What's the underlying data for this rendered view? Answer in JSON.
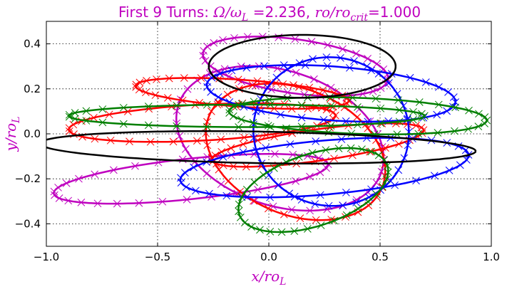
{
  "chart_data": {
    "type": "line",
    "title_parts": {
      "prefix": "First 9 Turns: ",
      "omega_ratio": "Ω/ω",
      "omega_sub": "L",
      "omega_value": " =2.236, ",
      "ro_ratio": "ro/ro",
      "ro_sub": "crit",
      "ro_value": "=1.000"
    },
    "xlabel_parts": {
      "main": "x/ro",
      "sub": "L"
    },
    "ylabel_parts": {
      "main": "y/ro",
      "sub": "L"
    },
    "xlim": [
      -1.0,
      1.0
    ],
    "ylim": [
      -0.5,
      0.5
    ],
    "xticks": [
      -1.0,
      -0.5,
      0.0,
      0.5,
      1.0
    ],
    "xtick_labels": [
      "−1.0",
      "−0.5",
      "0.0",
      "0.5",
      "1.0"
    ],
    "yticks": [
      -0.4,
      -0.2,
      0.0,
      0.2,
      0.4
    ],
    "ytick_labels": [
      "−0.4",
      "−0.2",
      "0.0",
      "0.2",
      "0.4"
    ],
    "grid": true,
    "legend": "none",
    "series": [
      {
        "color": "#bf00bf",
        "marker": "x",
        "ellipses": [
          {
            "cx": 0.12,
            "cy": 0.3,
            "rx": 0.42,
            "ry": 0.12,
            "tilt": -8
          },
          {
            "cx": -0.35,
            "cy": -0.2,
            "rx": 0.62,
            "ry": 0.09,
            "tilt": 6
          },
          {
            "cx": 0.05,
            "cy": -0.02,
            "rx": 0.48,
            "ry": 0.3,
            "tilt": -18
          }
        ]
      },
      {
        "color": "#ff0000",
        "marker": "x",
        "ellipses": [
          {
            "cx": -0.12,
            "cy": 0.18,
            "rx": 0.48,
            "ry": 0.06,
            "tilt": -4
          },
          {
            "cx": 0.22,
            "cy": -0.05,
            "rx": 0.48,
            "ry": 0.07,
            "tilt": 8
          },
          {
            "cx": 0.12,
            "cy": -0.08,
            "rx": 0.42,
            "ry": 0.28,
            "tilt": -22
          },
          {
            "cx": -0.3,
            "cy": 0.05,
            "rx": 0.6,
            "ry": 0.08,
            "tilt": 3
          }
        ]
      },
      {
        "color": "#0000ff",
        "marker": "x",
        "ellipses": [
          {
            "cx": 0.28,
            "cy": 0.18,
            "rx": 0.56,
            "ry": 0.12,
            "tilt": -4
          },
          {
            "cx": 0.25,
            "cy": -0.15,
            "rx": 0.65,
            "ry": 0.12,
            "tilt": 5
          },
          {
            "cx": 0.28,
            "cy": 0.01,
            "rx": 0.35,
            "ry": 0.33,
            "tilt": -10
          }
        ]
      },
      {
        "color": "#007f00",
        "marker": "x",
        "ellipses": [
          {
            "cx": 0.4,
            "cy": 0.08,
            "rx": 0.58,
            "ry": 0.08,
            "tilt": -2
          },
          {
            "cx": -0.1,
            "cy": 0.08,
            "rx": 0.8,
            "ry": 0.05,
            "tilt": 0
          },
          {
            "cx": 0.2,
            "cy": -0.25,
            "rx": 0.35,
            "ry": 0.16,
            "tilt": 18
          }
        ]
      },
      {
        "color": "#000000",
        "marker": "none",
        "ellipses": [
          {
            "cx": 0.15,
            "cy": 0.3,
            "rx": 0.42,
            "ry": 0.14,
            "tilt": 0
          },
          {
            "cx": -0.05,
            "cy": -0.06,
            "rx": 0.98,
            "ry": 0.07,
            "tilt": -1
          }
        ]
      }
    ]
  }
}
